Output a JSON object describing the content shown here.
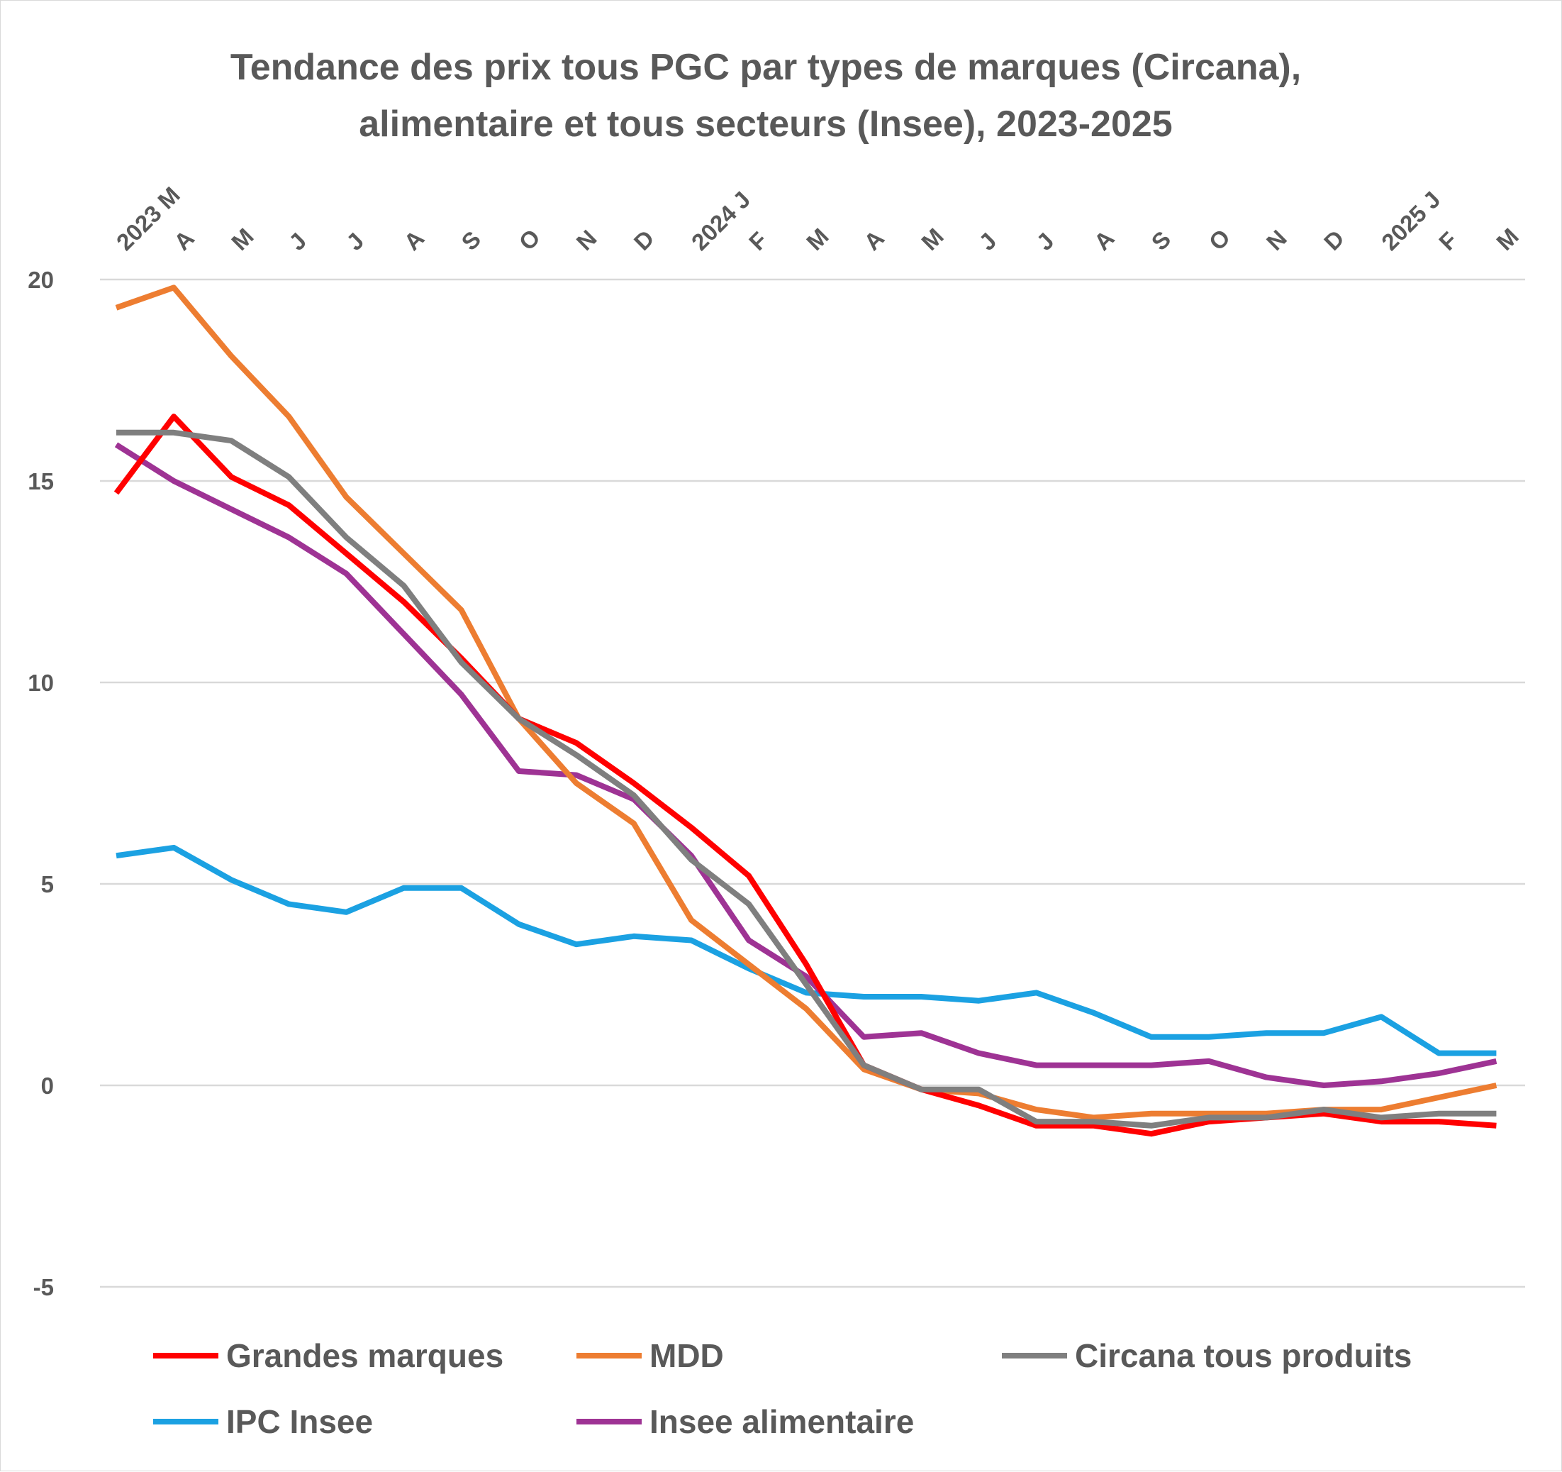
{
  "chart_data": {
    "type": "line",
    "title": "Tendance des prix tous PGC par types de marques (Circana), alimentaire et tous secteurs (Insee), 2023-2025",
    "title_lines": [
      "Tendance des prix tous PGC par types de marques (Circana),",
      "alimentaire et tous secteurs (Insee), 2023-2025"
    ],
    "categories": [
      "2023 M",
      "A",
      "M",
      "J",
      "J",
      "A",
      "S",
      "O",
      "N",
      "D",
      "2024 J",
      "F",
      "M",
      "A",
      "M",
      "J",
      "J",
      "A",
      "S",
      "O",
      "N",
      "D",
      "2025 J",
      "F",
      "M"
    ],
    "ylim": [
      -5,
      20
    ],
    "yticks": [
      -5,
      0,
      5,
      10,
      15,
      20
    ],
    "ytick_labels": [
      "-5",
      "0",
      "5",
      "10",
      "15",
      "20"
    ],
    "grid": true,
    "legend_position": "bottom",
    "xlabel": "",
    "ylabel": "",
    "series": [
      {
        "name": "Grandes marques",
        "color": "#ff0000",
        "values": [
          14.7,
          16.6,
          15.1,
          14.4,
          13.2,
          12.0,
          10.6,
          9.1,
          8.5,
          7.5,
          6.4,
          5.2,
          3.0,
          0.5,
          -0.1,
          -0.5,
          -1.0,
          -1.0,
          -1.2,
          -0.9,
          -0.8,
          -0.7,
          -0.9,
          -0.9,
          -1.0
        ]
      },
      {
        "name": "MDD",
        "color": "#ed7d31",
        "values": [
          19.3,
          19.8,
          18.1,
          16.6,
          14.6,
          13.2,
          11.8,
          9.1,
          7.5,
          6.5,
          4.1,
          3.0,
          1.9,
          0.4,
          -0.1,
          -0.2,
          -0.6,
          -0.8,
          -0.7,
          -0.7,
          -0.7,
          -0.6,
          -0.6,
          -0.3,
          0.0
        ]
      },
      {
        "name": "Circana tous produits",
        "color": "#7f7f7f",
        "values": [
          16.2,
          16.2,
          16.0,
          15.1,
          13.6,
          12.4,
          10.5,
          9.1,
          8.2,
          7.2,
          5.6,
          4.5,
          2.5,
          0.5,
          -0.1,
          -0.1,
          -0.9,
          -0.9,
          -1.0,
          -0.8,
          -0.8,
          -0.6,
          -0.8,
          -0.7,
          -0.7
        ]
      },
      {
        "name": "IPC Insee",
        "color": "#1ba1e2",
        "values": [
          5.7,
          5.9,
          5.1,
          4.5,
          4.3,
          4.9,
          4.9,
          4.0,
          3.5,
          3.7,
          3.6,
          2.9,
          2.3,
          2.2,
          2.2,
          2.1,
          2.3,
          1.8,
          1.2,
          1.2,
          1.3,
          1.3,
          1.7,
          0.8,
          0.8
        ]
      },
      {
        "name": "Insee alimentaire",
        "color": "#9e3394",
        "values": [
          15.9,
          15.0,
          14.3,
          13.6,
          12.7,
          11.2,
          9.7,
          7.8,
          7.7,
          7.1,
          5.7,
          3.6,
          2.7,
          1.2,
          1.3,
          0.8,
          0.5,
          0.5,
          0.5,
          0.6,
          0.2,
          0.0,
          0.1,
          0.3,
          0.6
        ]
      }
    ]
  }
}
